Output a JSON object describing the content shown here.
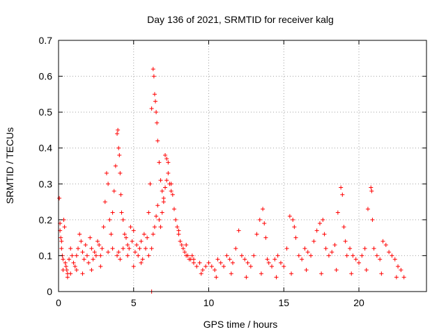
{
  "chart_data": {
    "type": "scatter",
    "title": "Day 136 of 2021, SRMTID for receiver kalg",
    "xlabel": "GPS time / hours",
    "ylabel": "SRMTID / TECUs",
    "xlim": [
      0,
      24.5
    ],
    "ylim": [
      0,
      0.7
    ],
    "xticks": [
      0,
      5,
      10,
      15,
      20
    ],
    "yticks": [
      0,
      0.1,
      0.2,
      0.3,
      0.4,
      0.5,
      0.6,
      0.7
    ],
    "xtick_labels": [
      "0",
      "5",
      "10",
      "15",
      "20"
    ],
    "ytick_labels": [
      "0",
      "0.1",
      "0.2",
      "0.3",
      "0.4",
      "0.5",
      "0.6",
      "0.7"
    ],
    "grid": true,
    "marker": "+",
    "color": "#ff0000",
    "series": [
      {
        "name": "SRMTID",
        "x": [
          0.05,
          0.1,
          0.15,
          0.2,
          0.25,
          0.3,
          0.35,
          0.4,
          0.45,
          0.5,
          0.55,
          0.6,
          0.7,
          0.8,
          0.9,
          1.0,
          1.1,
          1.2,
          1.3,
          1.4,
          1.5,
          1.6,
          1.7,
          1.8,
          1.9,
          2.0,
          2.1,
          2.2,
          2.3,
          2.4,
          2.5,
          2.6,
          2.7,
          2.8,
          2.9,
          3.0,
          3.1,
          3.2,
          3.3,
          3.4,
          3.5,
          3.6,
          3.7,
          3.8,
          3.9,
          3.95,
          4.0,
          4.05,
          4.1,
          4.15,
          4.2,
          4.3,
          4.4,
          4.5,
          4.6,
          4.7,
          4.8,
          4.9,
          5.0,
          5.1,
          5.2,
          5.3,
          5.4,
          5.5,
          5.6,
          5.7,
          5.8,
          5.9,
          6.0,
          6.1,
          6.2,
          6.3,
          6.35,
          6.4,
          6.45,
          6.5,
          6.55,
          6.6,
          6.7,
          6.8,
          6.9,
          7.0,
          7.1,
          7.2,
          7.3,
          7.4,
          7.5,
          7.6,
          7.7,
          7.8,
          7.9,
          8.0,
          8.1,
          8.2,
          8.3,
          8.4,
          8.5,
          8.6,
          8.7,
          8.8,
          8.9,
          9.0,
          9.2,
          9.4,
          9.6,
          9.8,
          10.0,
          10.2,
          10.4,
          10.6,
          10.8,
          11.0,
          11.2,
          11.4,
          11.6,
          11.8,
          12.0,
          12.2,
          12.4,
          12.6,
          12.8,
          13.0,
          13.2,
          13.4,
          13.6,
          13.7,
          13.8,
          13.9,
          14.0,
          14.2,
          14.4,
          14.6,
          14.8,
          15.0,
          15.2,
          15.4,
          15.6,
          15.7,
          15.8,
          16.0,
          16.2,
          16.4,
          16.6,
          16.8,
          17.0,
          17.2,
          17.4,
          17.6,
          17.7,
          17.8,
          18.0,
          18.2,
          18.4,
          18.6,
          18.8,
          18.9,
          19.0,
          19.1,
          19.2,
          19.4,
          19.6,
          19.8,
          20.0,
          20.2,
          20.4,
          20.6,
          20.8,
          20.85,
          20.9,
          21.0,
          21.2,
          21.4,
          21.6,
          21.8,
          22.0,
          22.2,
          22.4,
          22.6,
          22.8,
          23.0,
          0.1,
          0.2,
          0.3,
          0.6,
          0.8,
          1.2,
          1.6,
          2.2,
          2.8,
          3.3,
          3.6,
          3.9,
          4.0,
          4.1,
          4.3,
          4.6,
          5.0,
          5.5,
          6.0,
          6.2,
          6.3,
          6.4,
          6.5,
          6.6,
          6.7,
          6.8,
          6.9,
          7.0,
          7.1,
          7.2,
          7.3,
          7.5,
          8.0,
          8.5,
          9.0,
          9.5,
          10.5,
          11.5,
          12.5,
          13.5,
          14.5,
          15.5,
          16.5,
          17.5,
          18.5,
          19.5,
          20.5,
          21.5,
          22.5,
          6.2
        ],
        "y": [
          0.26,
          0.19,
          0.15,
          0.12,
          0.1,
          0.09,
          0.2,
          0.18,
          0.08,
          0.07,
          0.06,
          0.05,
          0.09,
          0.12,
          0.1,
          0.08,
          0.07,
          0.1,
          0.12,
          0.16,
          0.14,
          0.11,
          0.09,
          0.13,
          0.1,
          0.08,
          0.15,
          0.12,
          0.09,
          0.11,
          0.1,
          0.14,
          0.13,
          0.1,
          0.12,
          0.18,
          0.25,
          0.33,
          0.3,
          0.2,
          0.16,
          0.22,
          0.28,
          0.35,
          0.44,
          0.45,
          0.4,
          0.38,
          0.33,
          0.27,
          0.22,
          0.2,
          0.16,
          0.15,
          0.13,
          0.12,
          0.18,
          0.14,
          0.17,
          0.11,
          0.13,
          0.1,
          0.12,
          0.14,
          0.09,
          0.16,
          0.12,
          0.15,
          0.22,
          0.3,
          0.51,
          0.62,
          0.6,
          0.55,
          0.53,
          0.5,
          0.47,
          0.42,
          0.36,
          0.31,
          0.28,
          0.25,
          0.38,
          0.37,
          0.33,
          0.3,
          0.28,
          0.27,
          0.23,
          0.2,
          0.18,
          0.16,
          0.14,
          0.13,
          0.12,
          0.11,
          0.1,
          0.1,
          0.09,
          0.09,
          0.1,
          0.08,
          0.07,
          0.08,
          0.06,
          0.07,
          0.08,
          0.07,
          0.06,
          0.09,
          0.08,
          0.07,
          0.1,
          0.09,
          0.08,
          0.12,
          0.17,
          0.1,
          0.09,
          0.08,
          0.07,
          0.1,
          0.16,
          0.2,
          0.23,
          0.19,
          0.15,
          0.09,
          0.08,
          0.07,
          0.09,
          0.1,
          0.08,
          0.07,
          0.12,
          0.21,
          0.2,
          0.18,
          0.15,
          0.1,
          0.09,
          0.12,
          0.11,
          0.1,
          0.14,
          0.17,
          0.19,
          0.2,
          0.16,
          0.12,
          0.1,
          0.11,
          0.13,
          0.22,
          0.29,
          0.27,
          0.18,
          0.14,
          0.1,
          0.12,
          0.1,
          0.09,
          0.08,
          0.1,
          0.12,
          0.23,
          0.29,
          0.28,
          0.2,
          0.12,
          0.1,
          0.09,
          0.14,
          0.13,
          0.11,
          0.1,
          0.09,
          0.07,
          0.06,
          0.04,
          0.17,
          0.14,
          0.06,
          0.04,
          0.05,
          0.06,
          0.05,
          0.06,
          0.07,
          0.11,
          0.12,
          0.1,
          0.11,
          0.09,
          0.12,
          0.1,
          0.07,
          0.08,
          0.1,
          0.12,
          0.16,
          0.18,
          0.21,
          0.24,
          0.2,
          0.18,
          0.22,
          0.26,
          0.29,
          0.31,
          0.36,
          0.3,
          0.17,
          0.13,
          0.09,
          0.05,
          0.04,
          0.05,
          0.04,
          0.05,
          0.04,
          0.05,
          0.06,
          0.05,
          0.06,
          0.05,
          0.06,
          0.05,
          0.04,
          0.0
        ]
      }
    ]
  }
}
